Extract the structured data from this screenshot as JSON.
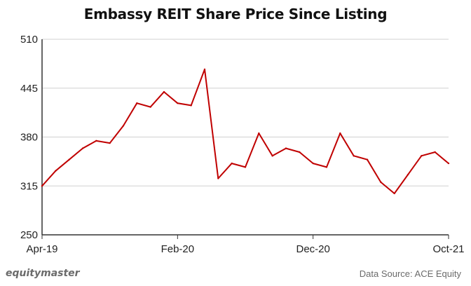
{
  "chart_data": {
    "type": "line",
    "title": "Embassy REIT Share Price Since Listing",
    "xlabel": "",
    "ylabel": "",
    "ylim": [
      250,
      510
    ],
    "yticks": [
      250,
      315,
      380,
      445,
      510
    ],
    "xticks": [
      "Apr-19",
      "Feb-20",
      "Dec-20",
      "Oct-21"
    ],
    "grid": "horizontal",
    "line_color": "#c00000",
    "series": [
      {
        "x": [
          "Apr-19",
          "May-19",
          "Jun-19",
          "Jul-19",
          "Aug-19",
          "Sep-19",
          "Oct-19",
          "Nov-19",
          "Dec-19",
          "Jan-20",
          "Feb-20",
          "Mar-20",
          "Apr-20",
          "May-20",
          "Jun-20",
          "Jul-20",
          "Aug-20",
          "Sep-20",
          "Oct-20",
          "Nov-20",
          "Dec-20",
          "Jan-21",
          "Feb-21",
          "Mar-21",
          "Apr-21",
          "May-21",
          "Jun-21",
          "Jul-21",
          "Aug-21",
          "Sep-21",
          "Oct-21"
        ],
        "values": [
          315,
          335,
          350,
          365,
          375,
          372,
          395,
          425,
          420,
          440,
          425,
          422,
          470,
          325,
          345,
          340,
          385,
          355,
          365,
          360,
          345,
          340,
          385,
          355,
          350,
          320,
          305,
          330,
          355,
          360,
          345
        ]
      }
    ]
  },
  "footer": {
    "brand": "equitymaster",
    "source": "Data Source: ACE Equity"
  }
}
